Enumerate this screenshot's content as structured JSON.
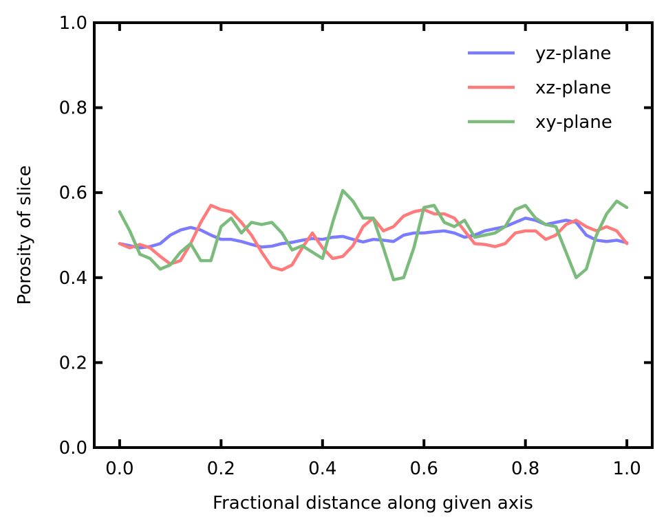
{
  "chart_data": {
    "type": "line",
    "title": "",
    "xlabel": "Fractional distance along given axis",
    "ylabel": "Porosity of slice",
    "xlim": [
      -0.05,
      1.05
    ],
    "ylim": [
      0.0,
      1.0
    ],
    "xticks": [
      0.0,
      0.2,
      0.4,
      0.6,
      0.8,
      1.0
    ],
    "yticks": [
      0.0,
      0.2,
      0.4,
      0.6,
      0.8,
      1.0
    ],
    "xtick_labels": [
      "0.0",
      "0.2",
      "0.4",
      "0.6",
      "0.8",
      "1.0"
    ],
    "ytick_labels": [
      "0.0",
      "0.2",
      "0.4",
      "0.6",
      "0.8",
      "1.0"
    ],
    "grid": false,
    "legend_position": "top-right",
    "series": [
      {
        "name": "yz-plane",
        "color": "#7b7bff",
        "x": [
          0.0,
          0.02,
          0.04,
          0.06,
          0.08,
          0.1,
          0.12,
          0.14,
          0.16,
          0.18,
          0.2,
          0.22,
          0.24,
          0.26,
          0.28,
          0.3,
          0.32,
          0.34,
          0.36,
          0.38,
          0.4,
          0.42,
          0.44,
          0.46,
          0.48,
          0.5,
          0.52,
          0.54,
          0.56,
          0.58,
          0.6,
          0.62,
          0.64,
          0.66,
          0.68,
          0.7,
          0.72,
          0.74,
          0.76,
          0.78,
          0.8,
          0.82,
          0.84,
          0.86,
          0.88,
          0.9,
          0.92,
          0.94,
          0.96,
          0.98,
          1.0
        ],
        "y": [
          0.48,
          0.475,
          0.47,
          0.473,
          0.48,
          0.5,
          0.512,
          0.518,
          0.512,
          0.5,
          0.49,
          0.49,
          0.485,
          0.478,
          0.472,
          0.474,
          0.48,
          0.483,
          0.488,
          0.492,
          0.49,
          0.495,
          0.497,
          0.49,
          0.484,
          0.49,
          0.488,
          0.485,
          0.5,
          0.505,
          0.505,
          0.508,
          0.51,
          0.505,
          0.495,
          0.5,
          0.51,
          0.515,
          0.52,
          0.53,
          0.54,
          0.535,
          0.525,
          0.53,
          0.535,
          0.53,
          0.5,
          0.488,
          0.485,
          0.488,
          0.482
        ]
      },
      {
        "name": "xz-plane",
        "color": "#ff7b7b",
        "x": [
          0.0,
          0.02,
          0.04,
          0.06,
          0.08,
          0.1,
          0.12,
          0.14,
          0.16,
          0.18,
          0.2,
          0.22,
          0.24,
          0.26,
          0.28,
          0.3,
          0.32,
          0.34,
          0.36,
          0.38,
          0.4,
          0.42,
          0.44,
          0.46,
          0.48,
          0.5,
          0.52,
          0.54,
          0.56,
          0.58,
          0.6,
          0.62,
          0.64,
          0.66,
          0.68,
          0.7,
          0.72,
          0.74,
          0.76,
          0.78,
          0.8,
          0.82,
          0.84,
          0.86,
          0.88,
          0.9,
          0.92,
          0.94,
          0.96,
          0.98,
          1.0
        ],
        "y": [
          0.48,
          0.47,
          0.478,
          0.47,
          0.45,
          0.432,
          0.44,
          0.48,
          0.53,
          0.57,
          0.56,
          0.555,
          0.53,
          0.5,
          0.46,
          0.425,
          0.418,
          0.43,
          0.47,
          0.505,
          0.47,
          0.445,
          0.45,
          0.475,
          0.52,
          0.54,
          0.51,
          0.52,
          0.545,
          0.555,
          0.56,
          0.55,
          0.55,
          0.54,
          0.51,
          0.48,
          0.478,
          0.473,
          0.48,
          0.505,
          0.51,
          0.51,
          0.49,
          0.5,
          0.525,
          0.535,
          0.52,
          0.51,
          0.52,
          0.51,
          0.48
        ]
      },
      {
        "name": "xy-plane",
        "color": "#7bbb7b",
        "x": [
          0.0,
          0.02,
          0.04,
          0.06,
          0.08,
          0.1,
          0.12,
          0.14,
          0.16,
          0.18,
          0.2,
          0.22,
          0.24,
          0.26,
          0.28,
          0.3,
          0.32,
          0.34,
          0.36,
          0.38,
          0.4,
          0.42,
          0.44,
          0.46,
          0.48,
          0.5,
          0.52,
          0.54,
          0.56,
          0.58,
          0.6,
          0.62,
          0.64,
          0.66,
          0.68,
          0.7,
          0.72,
          0.74,
          0.76,
          0.78,
          0.8,
          0.82,
          0.84,
          0.86,
          0.88,
          0.9,
          0.92,
          0.94,
          0.96,
          0.98,
          1.0
        ],
        "y": [
          0.555,
          0.51,
          0.455,
          0.445,
          0.42,
          0.43,
          0.46,
          0.48,
          0.44,
          0.44,
          0.52,
          0.54,
          0.505,
          0.53,
          0.525,
          0.53,
          0.505,
          0.465,
          0.475,
          0.46,
          0.445,
          0.53,
          0.605,
          0.58,
          0.54,
          0.54,
          0.47,
          0.395,
          0.4,
          0.47,
          0.565,
          0.57,
          0.53,
          0.52,
          0.535,
          0.495,
          0.5,
          0.505,
          0.52,
          0.56,
          0.57,
          0.54,
          0.525,
          0.52,
          0.46,
          0.4,
          0.42,
          0.5,
          0.55,
          0.58,
          0.565
        ]
      }
    ]
  }
}
